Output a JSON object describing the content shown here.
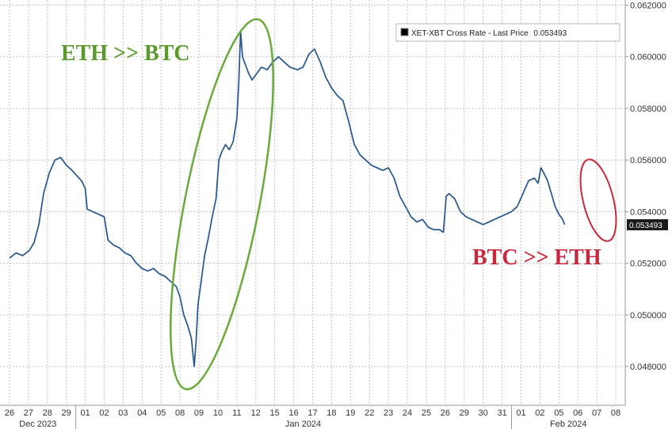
{
  "chart_data": {
    "type": "line",
    "title": "",
    "xlabel": "",
    "ylabel": "",
    "ylim": [
      0.0465,
      0.0622
    ],
    "y_ticks": [
      "0.048000",
      "0.050000",
      "0.052000",
      "0.054000",
      "0.056000",
      "0.058000",
      "0.060000",
      "0.062000"
    ],
    "y_tick_values": [
      0.048,
      0.05,
      0.052,
      0.054,
      0.056,
      0.058,
      0.06,
      0.062
    ],
    "x_categories": [
      "26",
      "27",
      "28",
      "29",
      "01",
      "02",
      "03",
      "04",
      "05",
      "08",
      "09",
      "10",
      "11",
      "12",
      "15",
      "16",
      "17",
      "18",
      "19",
      "22",
      "23",
      "24",
      "25",
      "26",
      "29",
      "30",
      "31",
      "01",
      "02",
      "05",
      "06",
      "07",
      "08"
    ],
    "month_labels": [
      {
        "label": "Dec 2023",
        "at": 1.5
      },
      {
        "label": "Jan 2024",
        "at": 15.5
      },
      {
        "label": "Feb 2024",
        "at": 29.5
      }
    ],
    "month_separators": [
      3.5,
      26.5
    ],
    "grid": true,
    "legend": {
      "position": "top-right",
      "label": "XET-XBT Cross Rate - Last Price",
      "value": "0.053493"
    },
    "last_price": "0.053493",
    "series": [
      {
        "name": "XET-XBT Cross Rate",
        "color": "#3a6ea8",
        "points": [
          [
            0.0,
            0.0522
          ],
          [
            0.35,
            0.0524
          ],
          [
            0.7,
            0.0523
          ],
          [
            1.05,
            0.0525
          ],
          [
            1.3,
            0.0528
          ],
          [
            1.55,
            0.0535
          ],
          [
            1.8,
            0.0547
          ],
          [
            2.1,
            0.0555
          ],
          [
            2.4,
            0.056
          ],
          [
            2.7,
            0.0561
          ],
          [
            3.0,
            0.0558
          ],
          [
            3.3,
            0.0556
          ],
          [
            3.55,
            0.0554
          ],
          [
            3.8,
            0.0552
          ],
          [
            4.0,
            0.0549
          ],
          [
            4.1,
            0.0541
          ],
          [
            4.4,
            0.054
          ],
          [
            4.7,
            0.0539
          ],
          [
            5.0,
            0.0538
          ],
          [
            5.2,
            0.0529
          ],
          [
            5.5,
            0.0527
          ],
          [
            5.8,
            0.0526
          ],
          [
            6.1,
            0.0524
          ],
          [
            6.4,
            0.0523
          ],
          [
            6.7,
            0.052
          ],
          [
            7.0,
            0.0518
          ],
          [
            7.3,
            0.0517
          ],
          [
            7.6,
            0.0518
          ],
          [
            7.9,
            0.0516
          ],
          [
            8.2,
            0.0515
          ],
          [
            8.5,
            0.0513
          ],
          [
            8.8,
            0.0511
          ],
          [
            9.0,
            0.0507
          ],
          [
            9.2,
            0.05
          ],
          [
            9.4,
            0.0496
          ],
          [
            9.6,
            0.0491
          ],
          [
            9.75,
            0.048
          ],
          [
            9.85,
            0.049
          ],
          [
            9.95,
            0.0504
          ],
          [
            10.1,
            0.0512
          ],
          [
            10.3,
            0.0523
          ],
          [
            10.5,
            0.053
          ],
          [
            10.7,
            0.0538
          ],
          [
            10.9,
            0.0545
          ],
          [
            11.05,
            0.056
          ],
          [
            11.2,
            0.0563
          ],
          [
            11.4,
            0.0566
          ],
          [
            11.6,
            0.0564
          ],
          [
            11.8,
            0.0567
          ],
          [
            12.0,
            0.0576
          ],
          [
            12.1,
            0.059
          ],
          [
            12.2,
            0.061
          ],
          [
            12.3,
            0.06
          ],
          [
            12.45,
            0.0597
          ],
          [
            12.6,
            0.0594
          ],
          [
            12.8,
            0.0591
          ],
          [
            13.0,
            0.0593
          ],
          [
            13.3,
            0.0596
          ],
          [
            13.6,
            0.0595
          ],
          [
            13.9,
            0.0598
          ],
          [
            14.2,
            0.06
          ],
          [
            14.5,
            0.0598
          ],
          [
            14.8,
            0.0596
          ],
          [
            15.2,
            0.0595
          ],
          [
            15.5,
            0.0596
          ],
          [
            15.8,
            0.0601
          ],
          [
            16.1,
            0.0603
          ],
          [
            16.4,
            0.0598
          ],
          [
            16.7,
            0.0592
          ],
          [
            17.0,
            0.0588
          ],
          [
            17.3,
            0.0585
          ],
          [
            17.6,
            0.0583
          ],
          [
            17.9,
            0.0575
          ],
          [
            18.2,
            0.0566
          ],
          [
            18.5,
            0.0562
          ],
          [
            18.8,
            0.056
          ],
          [
            19.1,
            0.0558
          ],
          [
            19.4,
            0.0557
          ],
          [
            19.7,
            0.0556
          ],
          [
            20.0,
            0.0557
          ],
          [
            20.3,
            0.0553
          ],
          [
            20.6,
            0.0546
          ],
          [
            20.9,
            0.0542
          ],
          [
            21.2,
            0.0538
          ],
          [
            21.5,
            0.0536
          ],
          [
            21.8,
            0.0537
          ],
          [
            22.1,
            0.0534
          ],
          [
            22.4,
            0.0533
          ],
          [
            22.7,
            0.0533
          ],
          [
            22.9,
            0.0532
          ],
          [
            23.05,
            0.0546
          ],
          [
            23.2,
            0.0547
          ],
          [
            23.5,
            0.0545
          ],
          [
            23.8,
            0.054
          ],
          [
            24.1,
            0.0538
          ],
          [
            24.4,
            0.0537
          ],
          [
            24.7,
            0.0536
          ],
          [
            25.0,
            0.0535
          ],
          [
            25.3,
            0.0536
          ],
          [
            25.6,
            0.0537
          ],
          [
            25.9,
            0.0538
          ],
          [
            26.2,
            0.0539
          ],
          [
            26.5,
            0.054
          ],
          [
            26.8,
            0.0542
          ],
          [
            27.1,
            0.0547
          ],
          [
            27.4,
            0.0552
          ],
          [
            27.7,
            0.0553
          ],
          [
            27.9,
            0.0551
          ],
          [
            28.05,
            0.0557
          ],
          [
            28.2,
            0.0555
          ],
          [
            28.4,
            0.0552
          ],
          [
            28.6,
            0.0547
          ],
          [
            28.8,
            0.0542
          ],
          [
            29.0,
            0.0539
          ],
          [
            29.2,
            0.0537
          ],
          [
            29.3,
            0.0535
          ]
        ]
      }
    ],
    "annotations": [
      {
        "text": "ETH >> BTC",
        "color": "#5a9a2a"
      },
      {
        "text": "BTC >> ETH",
        "color": "#c8283c"
      }
    ],
    "highlight_colors": {
      "up": "#6aaa3a",
      "down": "#c8283c"
    }
  }
}
